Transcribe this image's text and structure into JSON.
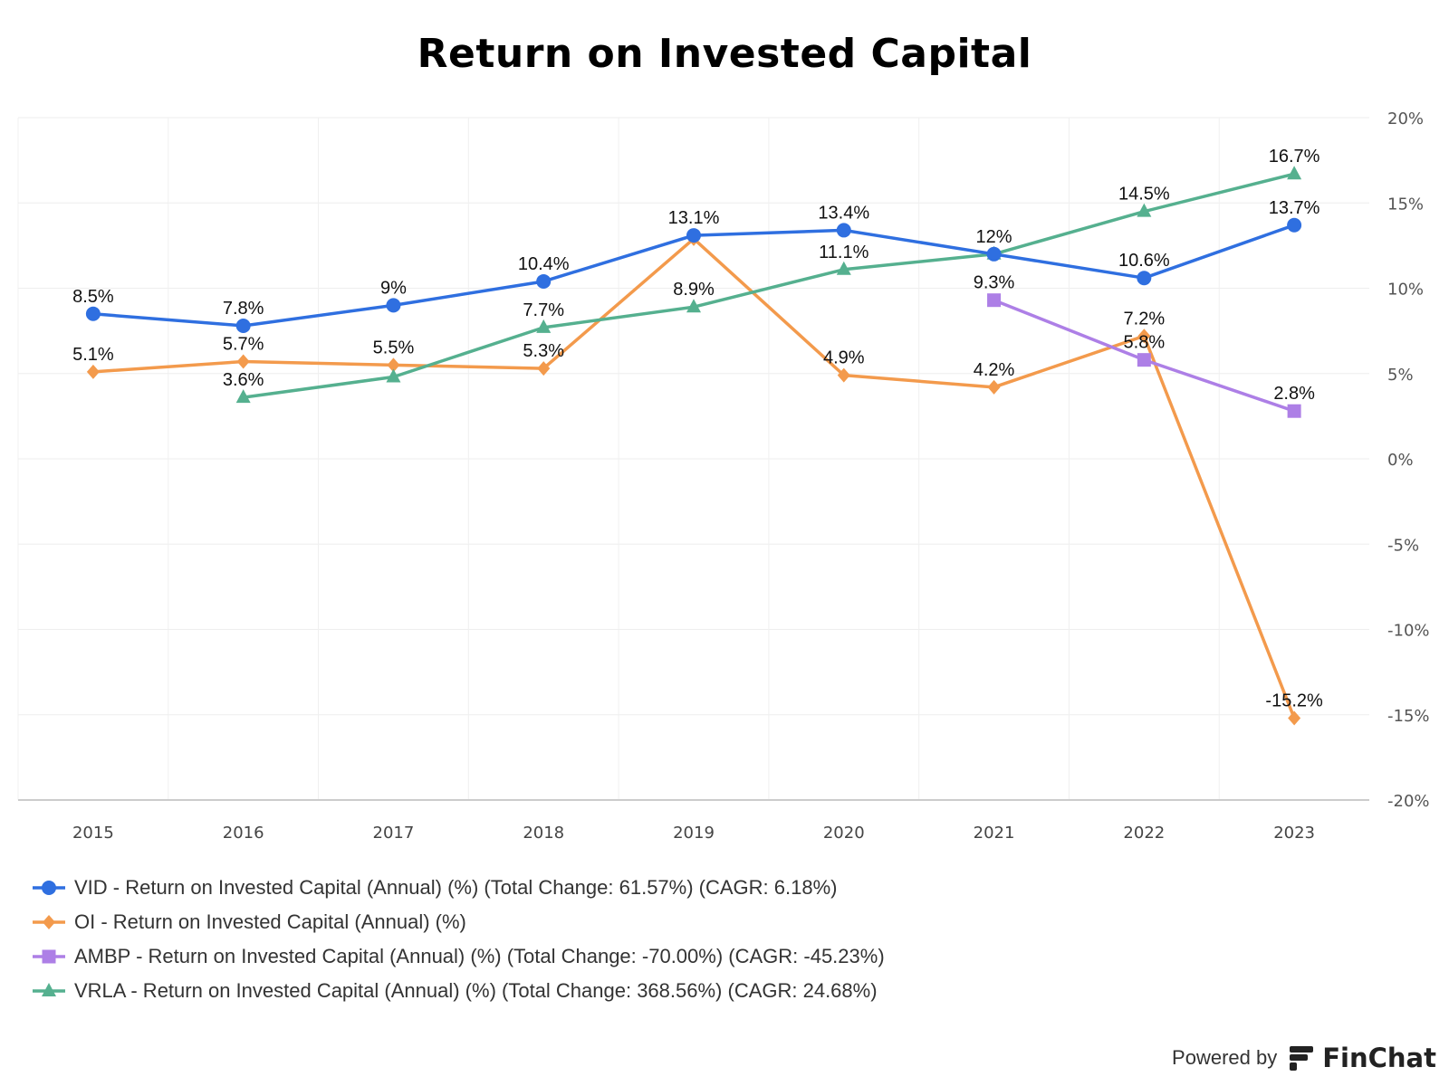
{
  "chart_data": {
    "type": "line",
    "title": "Return on Invested Capital",
    "x": [
      "2015",
      "2016",
      "2017",
      "2018",
      "2019",
      "2020",
      "2021",
      "2022",
      "2023"
    ],
    "ylim": [
      -20,
      20
    ],
    "yticks": [
      20,
      15,
      10,
      5,
      0,
      -5,
      -10,
      -15,
      -20
    ],
    "ytick_labels": [
      "20%",
      "15%",
      "10%",
      "5%",
      "0%",
      "-5%",
      "-10%",
      "-15%",
      "-20%"
    ],
    "y_axis_side": "right",
    "grid": true,
    "legend_position": "bottom-left",
    "series": [
      {
        "name": "VID - Return on Invested Capital (Annual) (%) (Total Change: 61.57%) (CAGR: 6.18%)",
        "color": "#2f6fe0",
        "marker": "circle",
        "values": [
          8.5,
          7.8,
          9,
          10.4,
          13.1,
          13.4,
          12,
          10.6,
          13.7
        ],
        "labels": [
          "8.5%",
          "7.8%",
          "9%",
          "10.4%",
          "13.1%",
          "13.4%",
          "12%",
          "10.6%",
          "13.7%"
        ]
      },
      {
        "name": "OI - Return on Invested Capital (Annual) (%)",
        "color": "#f39a4c",
        "marker": "diamond",
        "values": [
          5.1,
          5.7,
          5.5,
          5.3,
          12.9,
          4.9,
          4.2,
          7.2,
          -15.2
        ],
        "labels": [
          "5.1%",
          "5.7%",
          "5.5%",
          "5.3%",
          "",
          "4.9%",
          "4.2%",
          "7.2%",
          "-15.2%"
        ]
      },
      {
        "name": "AMBP - Return on Invested Capital (Annual) (%) (Total Change: -70.00%) (CAGR: -45.23%)",
        "color": "#ad7fe6",
        "marker": "square",
        "values": [
          null,
          null,
          null,
          null,
          null,
          null,
          9.3,
          5.8,
          2.8
        ],
        "labels": [
          "",
          "",
          "",
          "",
          "",
          "",
          "9.3%",
          "5.8%",
          "2.8%"
        ]
      },
      {
        "name": "VRLA - Return on Invested Capital (Annual) (%) (Total Change: 368.56%) (CAGR: 24.68%)",
        "color": "#55b08f",
        "marker": "triangle",
        "values": [
          null,
          3.6,
          4.8,
          7.7,
          8.9,
          11.1,
          12,
          14.5,
          16.7
        ],
        "labels": [
          "",
          "3.6%",
          "",
          "7.7%",
          "8.9%",
          "11.1%",
          "",
          "14.5%",
          "16.7%"
        ]
      }
    ]
  },
  "footer": {
    "powered_by": "Powered by",
    "brand": "FinChat"
  }
}
